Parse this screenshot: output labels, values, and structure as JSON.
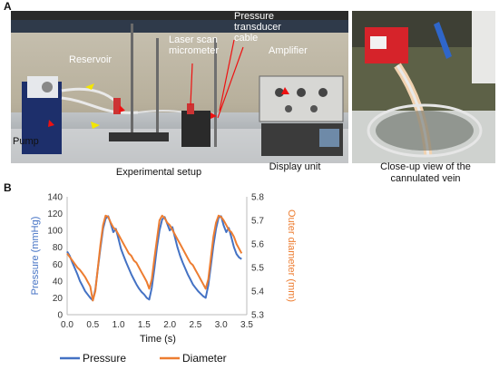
{
  "panel_a": {
    "letter": "A",
    "labels": {
      "reservoir": "Reservoir",
      "laser": "Laser scan\nmicrometer",
      "pressure_cable": "Pressure\ntransducer\ncable",
      "amplifier": "Amplifier",
      "pump": "Pump"
    },
    "captions": {
      "setup": "Experimental setup",
      "display": "Display unit",
      "closeup": "Close-up view of the\ncannulated vein"
    }
  },
  "panel_b": {
    "letter": "B"
  },
  "chart_data": {
    "type": "line",
    "xlabel": "Time (s)",
    "ylabel_left": "Pressure (mmHg)",
    "ylabel_right": "Outer diameter (mm)",
    "xlim": [
      0,
      3.5
    ],
    "ylim_left": [
      0,
      140
    ],
    "ylim_right": [
      5.3,
      5.8
    ],
    "x_ticks": [
      "0.0",
      "0.5",
      "1.0",
      "1.5",
      "2.0",
      "2.5",
      "3.0",
      "3.5"
    ],
    "y_left_ticks": [
      "0",
      "20",
      "40",
      "60",
      "80",
      "100",
      "120",
      "140"
    ],
    "y_right_ticks": [
      "5.3",
      "5.4",
      "5.5",
      "5.6",
      "5.7",
      "5.8"
    ],
    "legend_position": "bottom",
    "series": [
      {
        "name": "Pressure",
        "axis": "left",
        "color": "#4472C4",
        "points": [
          [
            0.0,
            75
          ],
          [
            0.05,
            70
          ],
          [
            0.1,
            62
          ],
          [
            0.15,
            55
          ],
          [
            0.2,
            48
          ],
          [
            0.25,
            40
          ],
          [
            0.3,
            34
          ],
          [
            0.35,
            28
          ],
          [
            0.4,
            24
          ],
          [
            0.45,
            20
          ],
          [
            0.5,
            17
          ],
          [
            0.55,
            30
          ],
          [
            0.6,
            55
          ],
          [
            0.65,
            80
          ],
          [
            0.7,
            102
          ],
          [
            0.75,
            114
          ],
          [
            0.8,
            117
          ],
          [
            0.85,
            108
          ],
          [
            0.9,
            98
          ],
          [
            0.95,
            102
          ],
          [
            1.0,
            90
          ],
          [
            1.05,
            78
          ],
          [
            1.1,
            70
          ],
          [
            1.15,
            62
          ],
          [
            1.2,
            55
          ],
          [
            1.25,
            48
          ],
          [
            1.3,
            42
          ],
          [
            1.35,
            36
          ],
          [
            1.4,
            31
          ],
          [
            1.45,
            27
          ],
          [
            1.5,
            24
          ],
          [
            1.55,
            20
          ],
          [
            1.6,
            18
          ],
          [
            1.65,
            32
          ],
          [
            1.7,
            55
          ],
          [
            1.75,
            80
          ],
          [
            1.8,
            100
          ],
          [
            1.85,
            113
          ],
          [
            1.9,
            116
          ],
          [
            1.95,
            108
          ],
          [
            2.0,
            100
          ],
          [
            2.05,
            104
          ],
          [
            2.1,
            92
          ],
          [
            2.15,
            80
          ],
          [
            2.2,
            70
          ],
          [
            2.25,
            62
          ],
          [
            2.3,
            55
          ],
          [
            2.35,
            48
          ],
          [
            2.4,
            42
          ],
          [
            2.45,
            36
          ],
          [
            2.5,
            32
          ],
          [
            2.55,
            28
          ],
          [
            2.6,
            25
          ],
          [
            2.65,
            22
          ],
          [
            2.7,
            20
          ],
          [
            2.75,
            35
          ],
          [
            2.8,
            58
          ],
          [
            2.85,
            82
          ],
          [
            2.9,
            102
          ],
          [
            2.95,
            115
          ],
          [
            3.0,
            117
          ],
          [
            3.05,
            106
          ],
          [
            3.1,
            98
          ],
          [
            3.15,
            103
          ],
          [
            3.2,
            92
          ],
          [
            3.25,
            80
          ],
          [
            3.3,
            72
          ],
          [
            3.35,
            68
          ],
          [
            3.4,
            66
          ]
        ]
      },
      {
        "name": "Diameter",
        "axis": "right",
        "color": "#ED7D31",
        "points": [
          [
            0.0,
            5.56
          ],
          [
            0.05,
            5.545
          ],
          [
            0.1,
            5.53
          ],
          [
            0.15,
            5.515
          ],
          [
            0.2,
            5.5
          ],
          [
            0.25,
            5.49
          ],
          [
            0.3,
            5.475
          ],
          [
            0.35,
            5.46
          ],
          [
            0.4,
            5.44
          ],
          [
            0.45,
            5.42
          ],
          [
            0.5,
            5.36
          ],
          [
            0.55,
            5.4
          ],
          [
            0.6,
            5.5
          ],
          [
            0.65,
            5.6
          ],
          [
            0.7,
            5.68
          ],
          [
            0.75,
            5.72
          ],
          [
            0.8,
            5.715
          ],
          [
            0.85,
            5.69
          ],
          [
            0.9,
            5.67
          ],
          [
            0.95,
            5.66
          ],
          [
            1.0,
            5.64
          ],
          [
            1.05,
            5.62
          ],
          [
            1.1,
            5.6
          ],
          [
            1.15,
            5.58
          ],
          [
            1.2,
            5.56
          ],
          [
            1.25,
            5.55
          ],
          [
            1.3,
            5.53
          ],
          [
            1.35,
            5.52
          ],
          [
            1.4,
            5.5
          ],
          [
            1.45,
            5.48
          ],
          [
            1.5,
            5.46
          ],
          [
            1.55,
            5.44
          ],
          [
            1.6,
            5.41
          ],
          [
            1.65,
            5.45
          ],
          [
            1.7,
            5.54
          ],
          [
            1.75,
            5.62
          ],
          [
            1.8,
            5.7
          ],
          [
            1.85,
            5.72
          ],
          [
            1.9,
            5.71
          ],
          [
            1.95,
            5.69
          ],
          [
            2.0,
            5.68
          ],
          [
            2.05,
            5.66
          ],
          [
            2.1,
            5.64
          ],
          [
            2.15,
            5.62
          ],
          [
            2.2,
            5.6
          ],
          [
            2.25,
            5.58
          ],
          [
            2.3,
            5.56
          ],
          [
            2.35,
            5.54
          ],
          [
            2.4,
            5.52
          ],
          [
            2.45,
            5.51
          ],
          [
            2.5,
            5.49
          ],
          [
            2.55,
            5.47
          ],
          [
            2.6,
            5.45
          ],
          [
            2.65,
            5.43
          ],
          [
            2.7,
            5.41
          ],
          [
            2.75,
            5.45
          ],
          [
            2.8,
            5.54
          ],
          [
            2.85,
            5.63
          ],
          [
            2.9,
            5.69
          ],
          [
            2.95,
            5.72
          ],
          [
            3.0,
            5.715
          ],
          [
            3.05,
            5.7
          ],
          [
            3.1,
            5.68
          ],
          [
            3.15,
            5.66
          ],
          [
            3.2,
            5.65
          ],
          [
            3.25,
            5.63
          ],
          [
            3.3,
            5.6
          ],
          [
            3.35,
            5.58
          ],
          [
            3.4,
            5.56
          ]
        ]
      }
    ]
  }
}
